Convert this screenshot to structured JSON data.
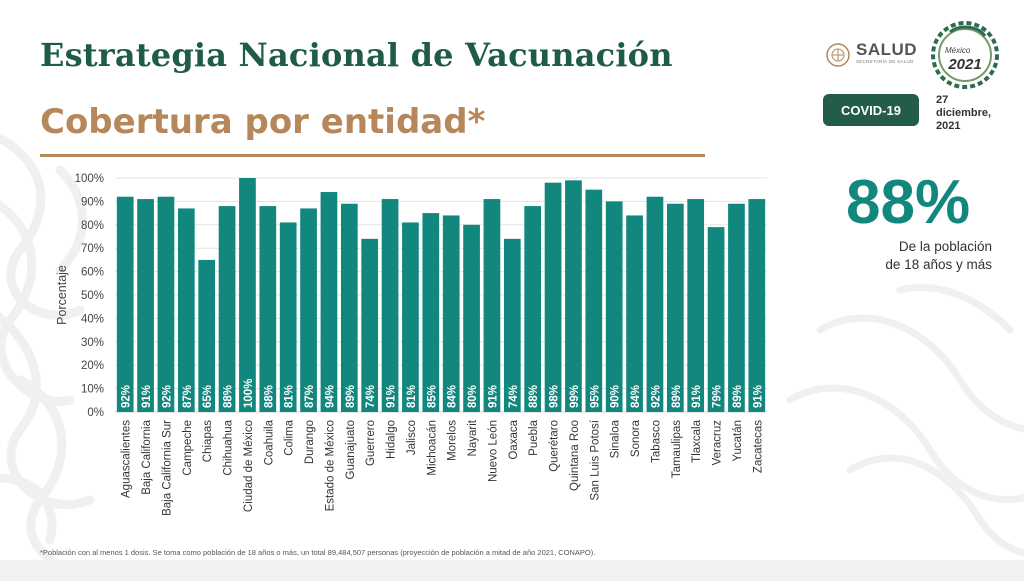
{
  "header": {
    "title": "Estrategia Nacional de Vacunación",
    "subtitle": "Cobertura por entidad*"
  },
  "logos": {
    "salud": "SALUD",
    "salud_sub": "SECRETARÍA DE SALUD",
    "mexico_name": "México",
    "mexico_year": "2021"
  },
  "badge": {
    "label": "COVID-19"
  },
  "date": {
    "day": "27",
    "month": "diciembre,",
    "year": "2021"
  },
  "stat": {
    "value": "88%",
    "caption_line1": "De la población",
    "caption_line2": "de 18 años y más"
  },
  "footnote": "*Población con al menos 1 dosis. Se toma como población de 18 años o más, un total 89,484,507 personas (proyección de población a mitad de año 2021, CONAPO).",
  "colors": {
    "bar": "#11877d",
    "title": "#1f5c47",
    "accent_gold": "#b6875a",
    "badge": "#245c4a"
  },
  "chart_data": {
    "type": "bar",
    "ylabel": "Porcentaje",
    "ylim": [
      0,
      100
    ],
    "yticks": [
      "0%",
      "10%",
      "20%",
      "30%",
      "40%",
      "50%",
      "60%",
      "70%",
      "80%",
      "90%",
      "100%"
    ],
    "grid": true,
    "data_label_orientation": "vertical",
    "categories": [
      "Aguascalientes",
      "Baja California",
      "Baja California Sur",
      "Campeche",
      "Chiapas",
      "Chihuahua",
      "Ciudad de México",
      "Coahuila",
      "Colima",
      "Durango",
      "Estado de México",
      "Guanajuato",
      "Guerrero",
      "Hidalgo",
      "Jalisco",
      "Michoacán",
      "Morelos",
      "Nayarit",
      "Nuevo León",
      "Oaxaca",
      "Puebla",
      "Querétaro",
      "Quintana Roo",
      "San Luis Potosí",
      "Sinaloa",
      "Sonora",
      "Tabasco",
      "Tamaulipas",
      "Tlaxcala",
      "Veracruz",
      "Yucatán",
      "Zacatecas"
    ],
    "values": [
      92,
      91,
      92,
      87,
      65,
      88,
      100,
      88,
      81,
      87,
      94,
      89,
      74,
      91,
      81,
      85,
      84,
      80,
      91,
      74,
      88,
      98,
      99,
      95,
      90,
      84,
      92,
      89,
      91,
      79,
      89,
      91
    ],
    "value_labels": [
      "92%",
      "91%",
      "92%",
      "87%",
      "65%",
      "88%",
      "100%",
      "88%",
      "81%",
      "87%",
      "94%",
      "89%",
      "74%",
      "91%",
      "81%",
      "85%",
      "84%",
      "80%",
      "91%",
      "74%",
      "88%",
      "98%",
      "99%",
      "95%",
      "90%",
      "84%",
      "92%",
      "89%",
      "91%",
      "79%",
      "89%",
      "91%"
    ]
  }
}
